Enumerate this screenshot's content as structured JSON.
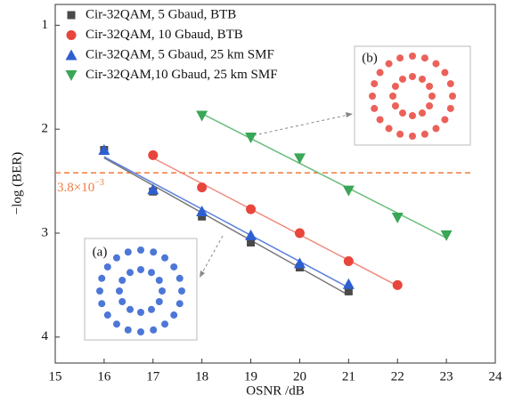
{
  "chart_data": {
    "type": "scatter",
    "xlabel": "OSNR /dB",
    "ylabel": "−log (BER)",
    "xlim": [
      15,
      24
    ],
    "xticks": [
      15,
      16,
      17,
      18,
      19,
      20,
      21,
      22,
      23,
      24
    ],
    "ylim": [
      0.8,
      4.25
    ],
    "yticks": [
      1,
      2,
      3,
      4
    ],
    "y_inverted": true,
    "legend": "top-left",
    "series": [
      {
        "name": "Cir-32QAM, 5 Gbaud, BTB",
        "color": "#4a4a4a",
        "line_color": "#777777",
        "marker": "square",
        "x": [
          16,
          17,
          18,
          19,
          20,
          21
        ],
        "values": [
          2.2,
          2.6,
          2.84,
          3.09,
          3.33,
          3.56
        ]
      },
      {
        "name": "Cir-32QAM, 10 Gbaud, BTB",
        "color": "#e8453c",
        "line_color": "#f08a7e",
        "marker": "circle",
        "x": [
          17,
          18,
          19,
          20,
          21,
          22
        ],
        "values": [
          2.25,
          2.56,
          2.77,
          3.0,
          3.27,
          3.5
        ]
      },
      {
        "name": "Cir-32QAM, 5 Gbaud, 25 km SMF",
        "color": "#2e5fd0",
        "line_color": "#5a7fe0",
        "marker": "triangle",
        "x": [
          16,
          17,
          18,
          19,
          20,
          21
        ],
        "values": [
          2.2,
          2.58,
          2.79,
          3.02,
          3.29,
          3.49
        ]
      },
      {
        "name": "Cir-32QAM,10 Gbaud, 25 km SMF",
        "color": "#3aa657",
        "line_color": "#6cbf7d",
        "marker": "triangle-down",
        "x": [
          18,
          19,
          20,
          21,
          22,
          23
        ],
        "values": [
          1.87,
          2.08,
          2.28,
          2.59,
          2.85,
          3.02
        ]
      }
    ],
    "threshold": {
      "value": 2.42,
      "color": "#f07a3c",
      "label": {
        "base": "3.8×10",
        "exponent": "−3"
      }
    },
    "insets": [
      {
        "label": "(a)"
      },
      {
        "label": "(b)"
      }
    ]
  }
}
